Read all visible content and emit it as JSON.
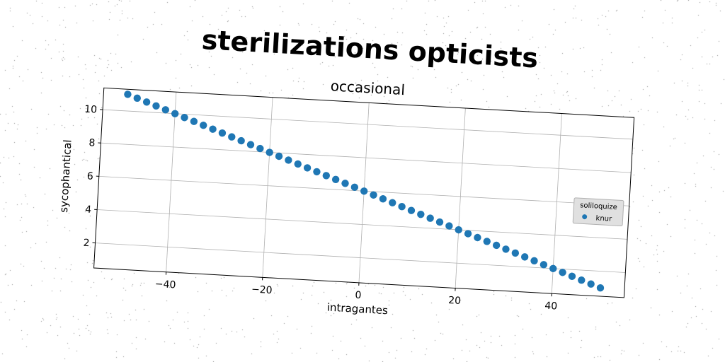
{
  "chart_data": {
    "type": "scatter",
    "suptitle": "sterilizations opticists",
    "title": "occasional",
    "xlabel": "intragantes",
    "ylabel": "sycophantical",
    "xlim": [
      -55,
      55
    ],
    "ylim": [
      0.5,
      11.3
    ],
    "xticks": [
      -40,
      -20,
      0,
      20,
      40
    ],
    "xtick_labels": [
      "−40",
      "−20",
      "0",
      "20",
      "40"
    ],
    "yticks": [
      2,
      4,
      6,
      8,
      10
    ],
    "ytick_labels": [
      "2",
      "4",
      "6",
      "8",
      "10"
    ],
    "grid": true,
    "legend": {
      "title": "soliloquize",
      "placement": "right"
    },
    "marker_color": "#1f77b4",
    "series": [
      {
        "name": "knur",
        "x": [
          -50,
          -48,
          -46,
          -44,
          -42,
          -40,
          -38,
          -36,
          -34,
          -32,
          -30,
          -28,
          -26,
          -24,
          -22,
          -20,
          -18,
          -16,
          -14,
          -12,
          -10,
          -8,
          -6,
          -4,
          -2,
          0,
          2,
          4,
          6,
          8,
          10,
          12,
          14,
          16,
          18,
          20,
          22,
          24,
          26,
          28,
          30,
          32,
          34,
          36,
          38,
          40,
          42,
          44,
          46,
          48,
          50
        ],
        "y": [
          11.0,
          10.8,
          10.6,
          10.4,
          10.2,
          10.0,
          9.8,
          9.6,
          9.4,
          9.2,
          9.0,
          8.8,
          8.6,
          8.4,
          8.2,
          8.0,
          7.8,
          7.6,
          7.4,
          7.2,
          7.0,
          6.8,
          6.6,
          6.4,
          6.2,
          6.0,
          5.8,
          5.6,
          5.4,
          5.2,
          5.0,
          4.8,
          4.6,
          4.4,
          4.2,
          4.0,
          3.8,
          3.6,
          3.4,
          3.2,
          3.0,
          2.8,
          2.6,
          2.4,
          2.2,
          2.0,
          1.8,
          1.6,
          1.4,
          1.2,
          1.0
        ]
      }
    ]
  }
}
